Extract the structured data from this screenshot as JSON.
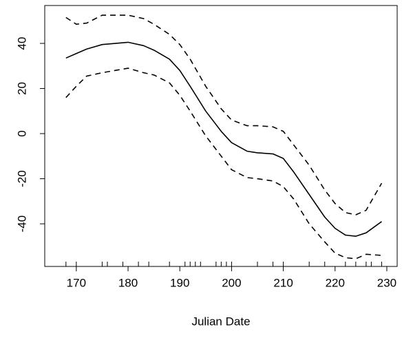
{
  "chart_data": {
    "type": "line",
    "xlabel": "Julian Date",
    "x": [
      168,
      170,
      172,
      175,
      180,
      183,
      185,
      188,
      190,
      192,
      195,
      198,
      200,
      203,
      205,
      208,
      210,
      212,
      215,
      218,
      220,
      222,
      224,
      226,
      229
    ],
    "series": [
      {
        "color": "#000000",
        "linestyle": "solid",
        "values": [
          33.5,
          35.5,
          37.5,
          39.5,
          40.5,
          39,
          37,
          33,
          28,
          21,
          10,
          1,
          -4,
          -7.8,
          -8.5,
          -9,
          -11,
          -17,
          -27,
          -37,
          -42,
          -45,
          -45.5,
          -44,
          -39
        ]
      },
      {
        "color": "#000000",
        "linestyle": "dashed",
        "values": [
          51.5,
          48.5,
          49,
          52.5,
          52.5,
          51,
          48.5,
          44,
          39.5,
          33,
          21,
          11,
          6,
          3.5,
          3.5,
          3,
          1,
          -5,
          -14,
          -25,
          -31,
          -35,
          -36,
          -34,
          -22
        ]
      },
      {
        "color": "#000000",
        "linestyle": "dashed",
        "values": [
          16,
          21,
          25.5,
          27,
          29,
          27,
          26,
          22.5,
          17,
          10,
          -1,
          -10,
          -16,
          -19.5,
          -20,
          -21,
          -23.5,
          -29,
          -40,
          -48,
          -53,
          -55,
          -55.5,
          -53.5,
          -54
        ]
      }
    ],
    "rug": [
      168,
      170,
      175,
      176,
      179,
      182,
      184,
      188,
      191,
      192,
      193,
      194,
      197,
      198,
      199,
      200,
      205,
      208,
      210,
      215,
      218,
      222,
      224,
      226,
      227,
      229
    ],
    "xlim": [
      163.9,
      232.0
    ],
    "ylim": [
      -58.9,
      56.8
    ],
    "xticks": [
      170,
      180,
      190,
      200,
      210,
      220,
      230
    ],
    "yticks": [
      -40,
      -20,
      0,
      20,
      40
    ]
  }
}
